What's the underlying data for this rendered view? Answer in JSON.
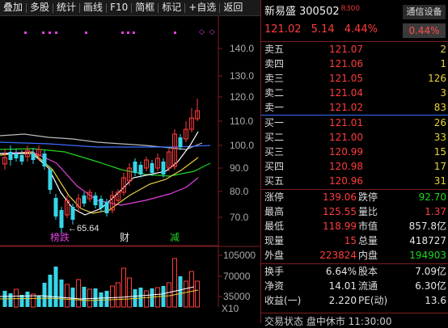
{
  "toolbar": {
    "items": [
      "叠加",
      "多股",
      "统计",
      "画线",
      "F10",
      "简框",
      "标记",
      "+自选",
      "返回"
    ]
  },
  "chart": {
    "price_ticks": [
      "140.0",
      "130.0",
      "120.0",
      "110.0",
      "100.0",
      "90.0",
      "80.0",
      "70.0"
    ],
    "volume_ticks": [
      "105000",
      "70000",
      "35000"
    ],
    "scale_label": "X10",
    "low_label": "←65.64",
    "event_labels": [
      "榜跌",
      "财",
      "减"
    ],
    "colors": {
      "up": "#ff3c3c",
      "down": "#36d6e8",
      "ma5": "#ffffff",
      "ma10": "#e8d23c",
      "ma20": "#e040e0",
      "ma60": "#21d321",
      "ma120": "#3a6cff",
      "ma250": "#bbbbbb"
    }
  },
  "quote": {
    "name": "新易盛",
    "code": "300502",
    "r_badge": "R",
    "r_num": "300",
    "comm_button": "通信设备",
    "price": "121.02",
    "change": "5.14",
    "change_pct": "4.44%",
    "sector_pct": "0.44%",
    "asks": [
      {
        "label": "卖五",
        "price": "121.07",
        "vol": "2"
      },
      {
        "label": "卖四",
        "price": "121.06",
        "vol": "1"
      },
      {
        "label": "卖三",
        "price": "121.05",
        "vol": "126"
      },
      {
        "label": "卖二",
        "price": "121.04",
        "vol": "3"
      },
      {
        "label": "卖一",
        "price": "121.02",
        "vol": "83"
      }
    ],
    "bids": [
      {
        "label": "买一",
        "price": "121.01",
        "vol": "26"
      },
      {
        "label": "买二",
        "price": "121.00",
        "vol": "33"
      },
      {
        "label": "买三",
        "price": "120.99",
        "vol": "15"
      },
      {
        "label": "买四",
        "price": "120.98",
        "vol": "17"
      },
      {
        "label": "买五",
        "price": "120.96",
        "vol": "31"
      }
    ],
    "stats1": [
      {
        "k1": "涨停",
        "v1": "139.06",
        "c1": "red",
        "k2": "跌停",
        "v2": "92.70",
        "c2": "green"
      },
      {
        "k1": "最高",
        "v1": "125.55",
        "c1": "red",
        "k2": "量比",
        "v2": "1.37",
        "c2": "red"
      },
      {
        "k1": "最低",
        "v1": "118.99",
        "c1": "red",
        "k2": "市值",
        "v2": "857.8亿",
        "c2": "white"
      },
      {
        "k1": "现量",
        "v1": "15",
        "c1": "red",
        "k2": "总量",
        "v2": "418727",
        "c2": "white"
      },
      {
        "k1": "外盘",
        "v1": "223824",
        "c1": "red",
        "k2": "内盘",
        "v2": "194903",
        "c2": "green"
      }
    ],
    "stats2": [
      {
        "k1": "换手",
        "v1": "6.64%",
        "c1": "white",
        "k2": "股本",
        "v2": "7.09亿",
        "c2": "white"
      },
      {
        "k1": "净资",
        "v1": "14.01",
        "c1": "white",
        "k2": "流通",
        "v2": "6.30亿",
        "c2": "white"
      },
      {
        "k1": "收益(一)",
        "v1": "2.220",
        "c1": "white",
        "k2": "PE(动)",
        "v2": "13.6",
        "c2": "white"
      }
    ],
    "bottom": "交易状态  盘中休市  11:30:00"
  }
}
